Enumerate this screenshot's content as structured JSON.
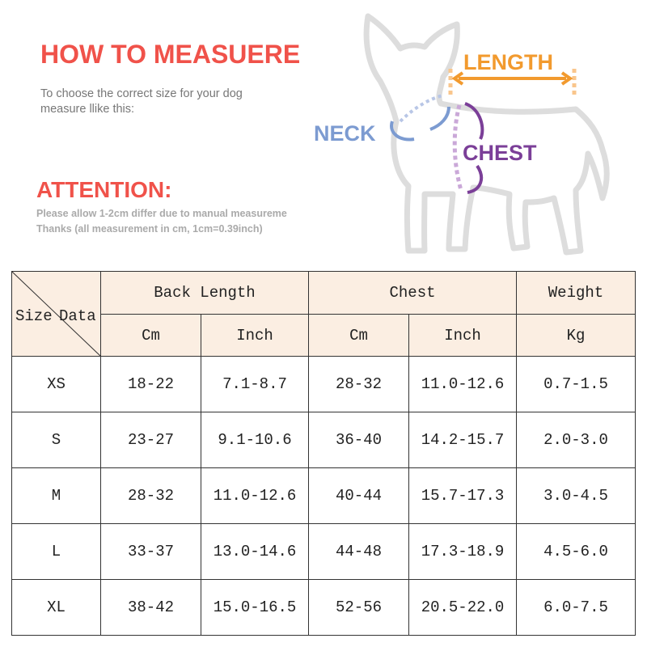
{
  "header": {
    "title": "HOW TO MEASUERE",
    "subtitle_lines": [
      "To choose the correct size for your dog",
      "measure llike this:"
    ],
    "attention": "ATTENTION:",
    "notes": [
      "Please allow 1-2cm differ due to manual measureme",
      "Thanks (all measurement in cm, 1cm=0.39inch)"
    ]
  },
  "diagram": {
    "labels": {
      "length": "LENGTH",
      "neck": "NECK",
      "chest": "CHEST"
    }
  },
  "table": {
    "corner": [
      "Size",
      "Data"
    ],
    "groups": [
      "Back Length",
      "Chest",
      "Weight"
    ],
    "units": [
      "Cm",
      "Inch",
      "Cm",
      "Inch",
      "Kg"
    ],
    "rows": [
      [
        "XS",
        "18-22",
        "7.1-8.7",
        "28-32",
        "11.0-12.6",
        "0.7-1.5"
      ],
      [
        "S",
        "23-27",
        "9.1-10.6",
        "36-40",
        "14.2-15.7",
        "2.0-3.0"
      ],
      [
        "M",
        "28-32",
        "11.0-12.6",
        "40-44",
        "15.7-17.3",
        "3.0-4.5"
      ],
      [
        "L",
        "33-37",
        "13.0-14.6",
        "44-48",
        "17.3-18.9",
        "4.5-6.0"
      ],
      [
        "XL",
        "38-42",
        "15.0-16.5",
        "52-56",
        "20.5-22.0",
        "6.0-7.5"
      ]
    ]
  }
}
